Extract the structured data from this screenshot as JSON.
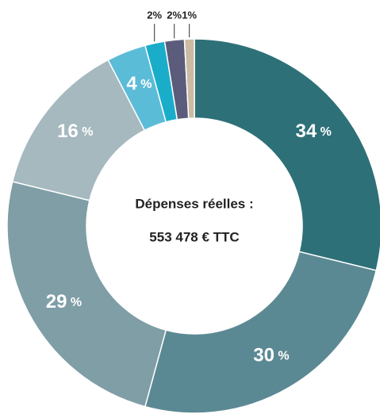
{
  "chart_data": {
    "type": "donut",
    "center_text": [
      "Dépenses réelles :",
      "553 478 € TTC"
    ],
    "values": [
      34,
      30,
      29,
      16,
      4,
      2,
      2,
      1
    ],
    "value_labels": [
      "34 %",
      "30 %",
      "29 %",
      "16 %",
      "4 %",
      "2%",
      "2%",
      "1%"
    ],
    "colors": [
      "#2e7078",
      "#5b8993",
      "#7f9ea6",
      "#a5b9bf",
      "#5bbcd8",
      "#1aadca",
      "#5b5b7c",
      "#cbbba2"
    ]
  }
}
